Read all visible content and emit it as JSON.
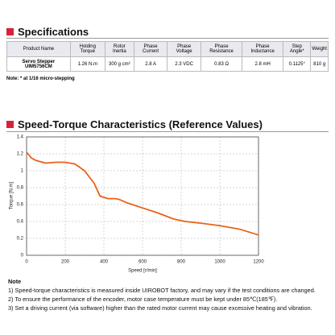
{
  "specs_title": "Specifications",
  "table": {
    "header": [
      "Product Name",
      "Holding Torque",
      "Rotor Inertia",
      "Phase Current",
      "Phase Voltage",
      "Phase Resistance",
      "Phase Inductance",
      "Step Angle*",
      "Weight"
    ],
    "rows": [
      [
        "Servo Stepper UIM5756CM",
        "1.26 N.m",
        "300 g cm²",
        "2.8 A",
        "2.3 VDC",
        "0.83 Ω",
        "2.8 mH",
        "0.1125°",
        "810 g"
      ]
    ]
  },
  "table_note": "Note: * at 1/16 micro-stepping",
  "chart_title": "Speed-Torque Characteristics (Reference Values)",
  "chart_data": {
    "type": "line",
    "xlabel": "Speed [r/min]",
    "ylabel": "Torque [N.m]",
    "color": "#e8621a",
    "x": [
      0,
      25,
      50,
      100,
      150,
      200,
      250,
      300,
      350,
      380,
      420,
      460,
      480,
      520,
      600,
      680,
      760,
      820,
      900,
      1000,
      1100,
      1200
    ],
    "values": [
      1.22,
      1.15,
      1.12,
      1.09,
      1.1,
      1.1,
      1.08,
      1.0,
      0.85,
      0.7,
      0.67,
      0.67,
      0.66,
      0.62,
      0.56,
      0.5,
      0.43,
      0.4,
      0.38,
      0.35,
      0.31,
      0.24
    ],
    "xlim": [
      0,
      1200
    ],
    "xticks": [
      0,
      200,
      400,
      600,
      800,
      1000,
      1200
    ],
    "ylim": [
      0,
      1.4
    ],
    "yticks": [
      0,
      0.2,
      0.4,
      0.6,
      0.8,
      {
        "value": 1,
        "label": "1"
      },
      1.2,
      1.4
    ],
    "grid": true
  },
  "notes": {
    "heading": "Note",
    "items": [
      "1)  Speed-torque characteristics is measured inside UIROBOT factory, and may vary if the test conditions are changed.",
      "2)  To ensure the performance of the encoder, motor case temperature must be kept under 85℃(185℉).",
      "3)  Set a driving current (via software) higher than the rated motor current may cause excessive heating and vibration."
    ]
  }
}
